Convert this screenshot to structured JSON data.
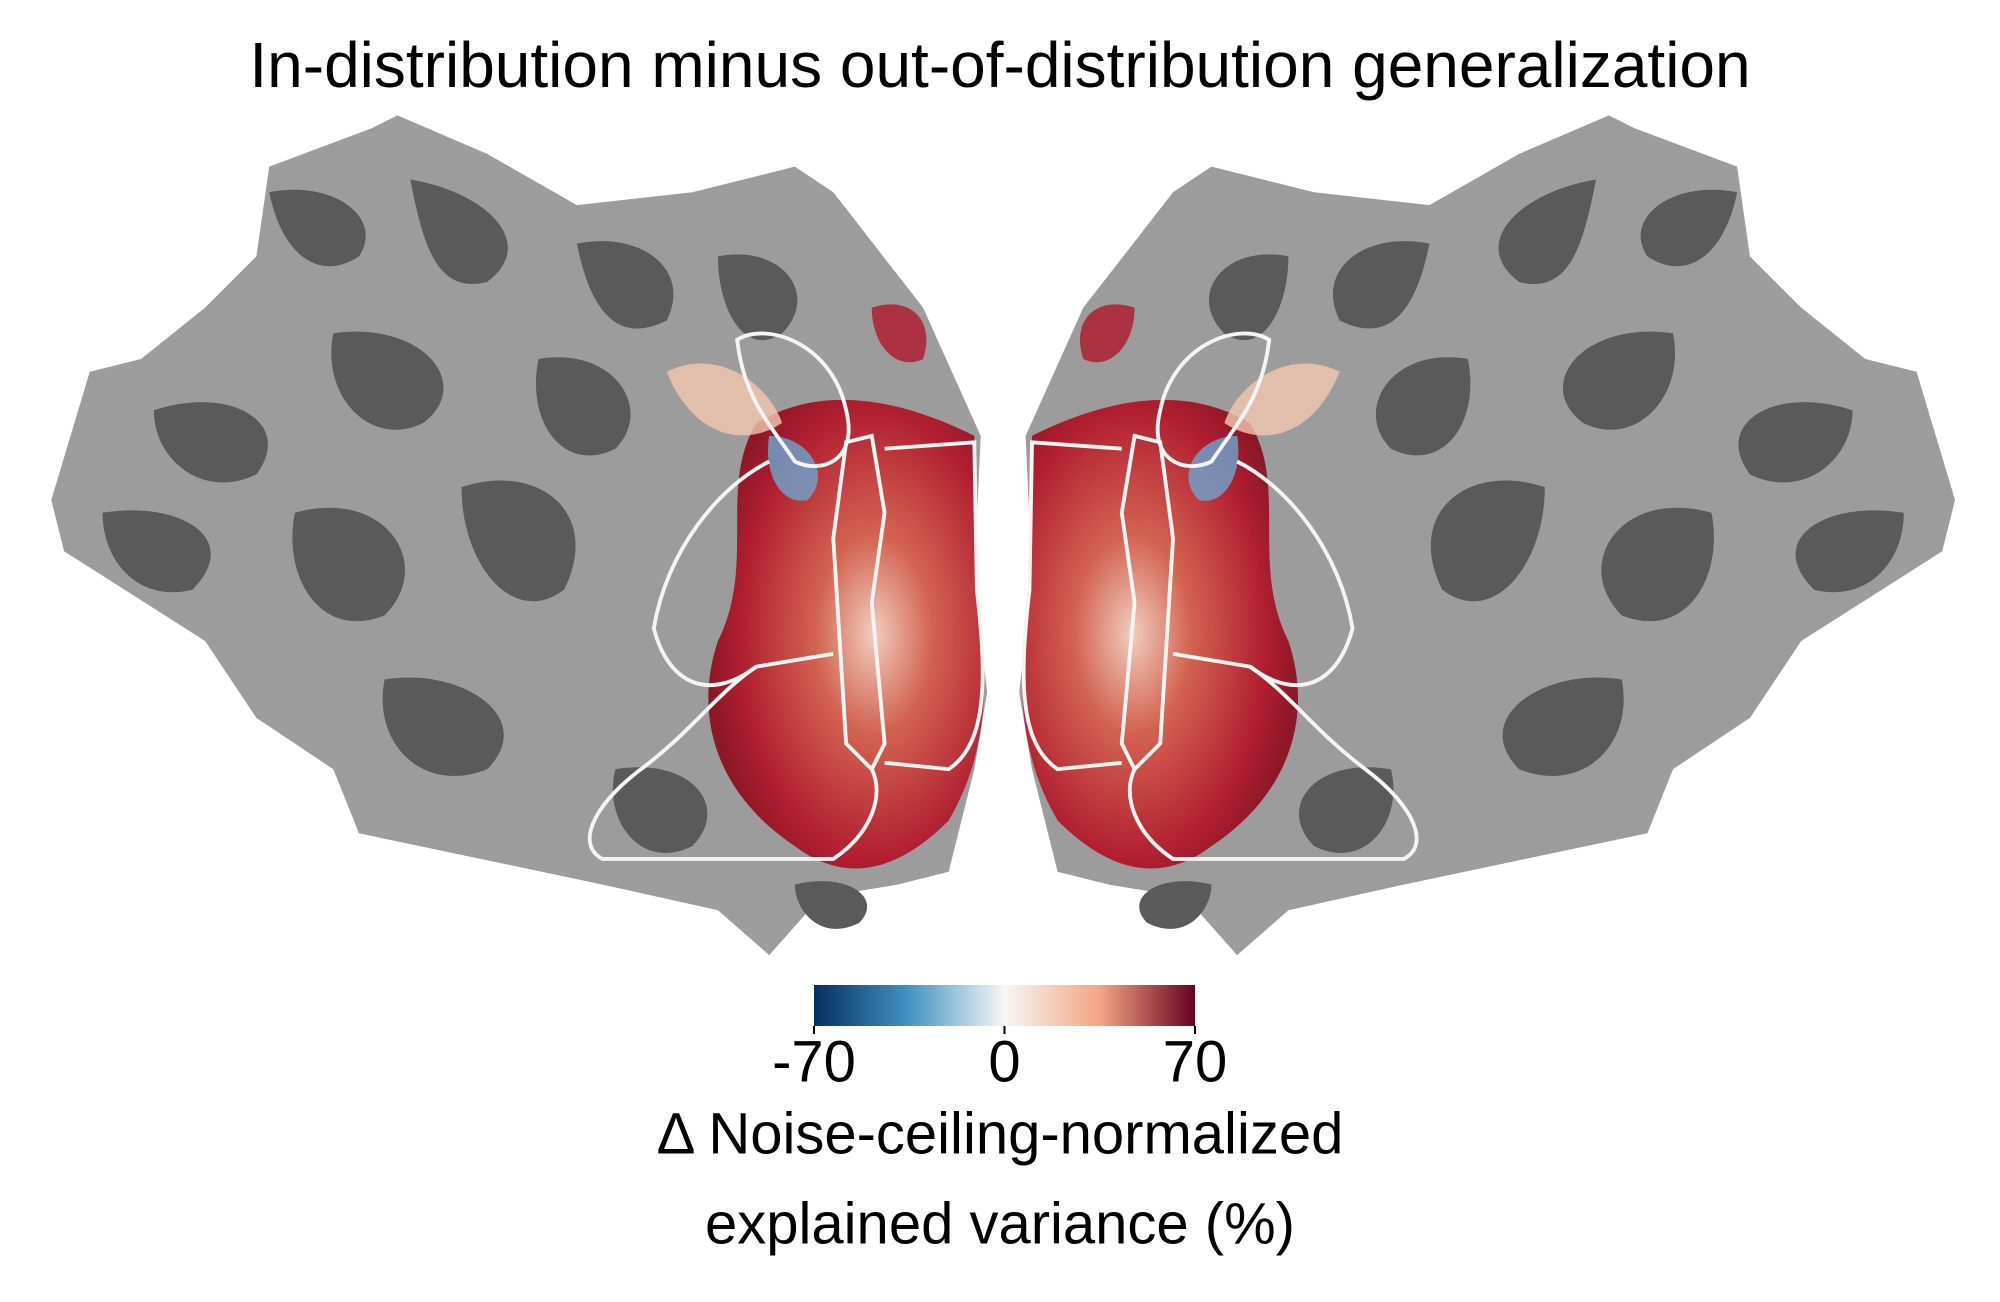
{
  "chart_data": {
    "type": "flatmap",
    "title": "In-distribution minus out-of-distribution generalization",
    "colorbar": {
      "lim": [
        -70,
        70
      ],
      "ticks": [
        -70,
        0,
        70
      ],
      "label": [
        "Δ Noise-ceiling-normalized",
        "explained variance (%)"
      ],
      "colors": [
        "#053061",
        "#4393c3",
        "#f7f7f7",
        "#f4a582",
        "#67001f"
      ]
    }
  }
}
